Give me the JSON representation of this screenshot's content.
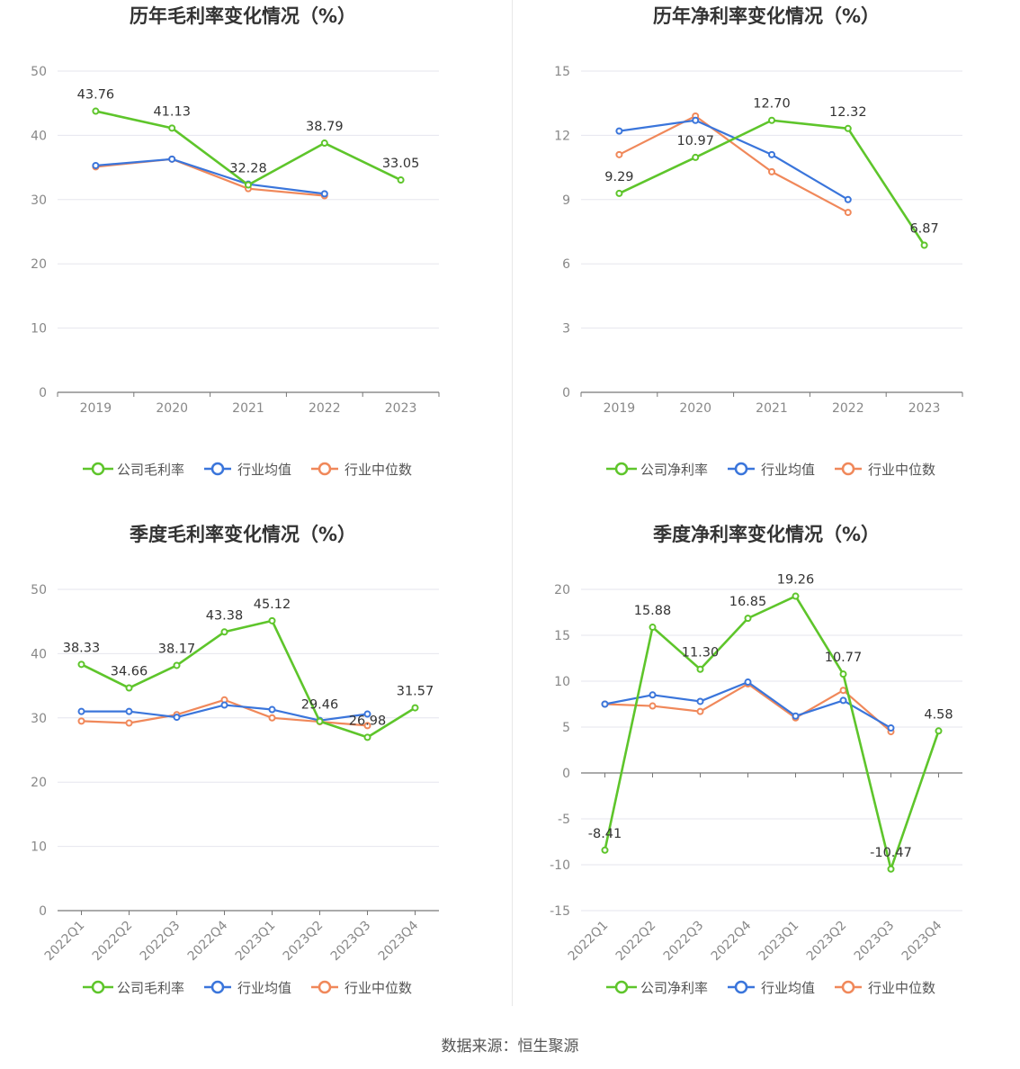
{
  "colors": {
    "company": "#5ec52b",
    "avg": "#3a75db",
    "median": "#f0885a"
  },
  "source": "数据来源：恒生聚源",
  "charts": [
    {
      "id": "annual-gross",
      "title": "历年毛利率变化情况（%）",
      "type": "line",
      "categories": [
        "2019",
        "2020",
        "2021",
        "2022",
        "2023"
      ],
      "ylim": [
        0,
        50
      ],
      "yticks": [
        0,
        10,
        20,
        30,
        40,
        50
      ],
      "rotate_x": false,
      "series": [
        {
          "name": "公司毛利率",
          "key": "company",
          "values": [
            43.76,
            41.13,
            32.28,
            38.79,
            33.05
          ],
          "labels": [
            "43.76",
            "41.13",
            "32.28",
            "38.79",
            "33.05"
          ]
        },
        {
          "name": "行业均值",
          "key": "avg",
          "values": [
            35.3,
            36.3,
            32.4,
            30.9,
            null
          ]
        },
        {
          "name": "行业中位数",
          "key": "median",
          "values": [
            35.1,
            36.3,
            31.7,
            30.6,
            null
          ]
        }
      ]
    },
    {
      "id": "annual-net",
      "title": "历年净利率变化情况（%）",
      "type": "line",
      "categories": [
        "2019",
        "2020",
        "2021",
        "2022",
        "2023"
      ],
      "ylim": [
        0,
        15
      ],
      "yticks": [
        0,
        3,
        6,
        9,
        12,
        15
      ],
      "rotate_x": false,
      "series": [
        {
          "name": "公司净利率",
          "key": "company",
          "values": [
            9.29,
            10.97,
            12.7,
            12.32,
            6.87
          ],
          "labels": [
            "9.29",
            "10.97",
            "12.70",
            "12.32",
            "6.87"
          ]
        },
        {
          "name": "行业均值",
          "key": "avg",
          "values": [
            12.2,
            12.7,
            11.1,
            9.0,
            null
          ]
        },
        {
          "name": "行业中位数",
          "key": "median",
          "values": [
            11.1,
            12.9,
            10.3,
            8.4,
            null
          ]
        }
      ]
    },
    {
      "id": "quarterly-gross",
      "title": "季度毛利率变化情况（%）",
      "type": "line",
      "categories": [
        "2022Q1",
        "2022Q2",
        "2022Q3",
        "2022Q4",
        "2023Q1",
        "2023Q2",
        "2023Q3",
        "2023Q4"
      ],
      "ylim": [
        0,
        50
      ],
      "yticks": [
        0,
        10,
        20,
        30,
        40,
        50
      ],
      "rotate_x": true,
      "series": [
        {
          "name": "公司毛利率",
          "key": "company",
          "values": [
            38.33,
            34.66,
            38.17,
            43.38,
            45.12,
            29.46,
            26.98,
            31.57
          ],
          "labels": [
            "38.33",
            "34.66",
            "38.17",
            "43.38",
            "45.12",
            "29.46",
            "26.98",
            "31.57"
          ]
        },
        {
          "name": "行业均值",
          "key": "avg",
          "values": [
            31.0,
            31.0,
            30.1,
            32.0,
            31.3,
            29.6,
            30.6,
            null
          ]
        },
        {
          "name": "行业中位数",
          "key": "median",
          "values": [
            29.5,
            29.2,
            30.5,
            32.8,
            30.0,
            29.4,
            28.8,
            null
          ]
        }
      ]
    },
    {
      "id": "quarterly-net",
      "title": "季度净利率变化情况（%）",
      "type": "line",
      "categories": [
        "2022Q1",
        "2022Q2",
        "2022Q3",
        "2022Q4",
        "2023Q1",
        "2023Q2",
        "2023Q3",
        "2023Q4"
      ],
      "ylim": [
        -15,
        20
      ],
      "yticks": [
        -15,
        -10,
        -5,
        0,
        5,
        10,
        15,
        20
      ],
      "rotate_x": true,
      "series": [
        {
          "name": "公司净利率",
          "key": "company",
          "values": [
            -8.41,
            15.88,
            11.3,
            16.85,
            19.26,
            10.77,
            -10.47,
            4.58
          ],
          "labels": [
            "-8.41",
            "15.88",
            "11.30",
            "16.85",
            "19.26",
            "10.77",
            "-10.47",
            "4.58"
          ]
        },
        {
          "name": "行业均值",
          "key": "avg",
          "values": [
            7.5,
            8.5,
            7.8,
            9.9,
            6.2,
            7.9,
            4.9,
            null
          ]
        },
        {
          "name": "行业中位数",
          "key": "median",
          "values": [
            7.5,
            7.3,
            6.7,
            9.7,
            6.0,
            9.0,
            4.5,
            null
          ]
        }
      ]
    }
  ]
}
